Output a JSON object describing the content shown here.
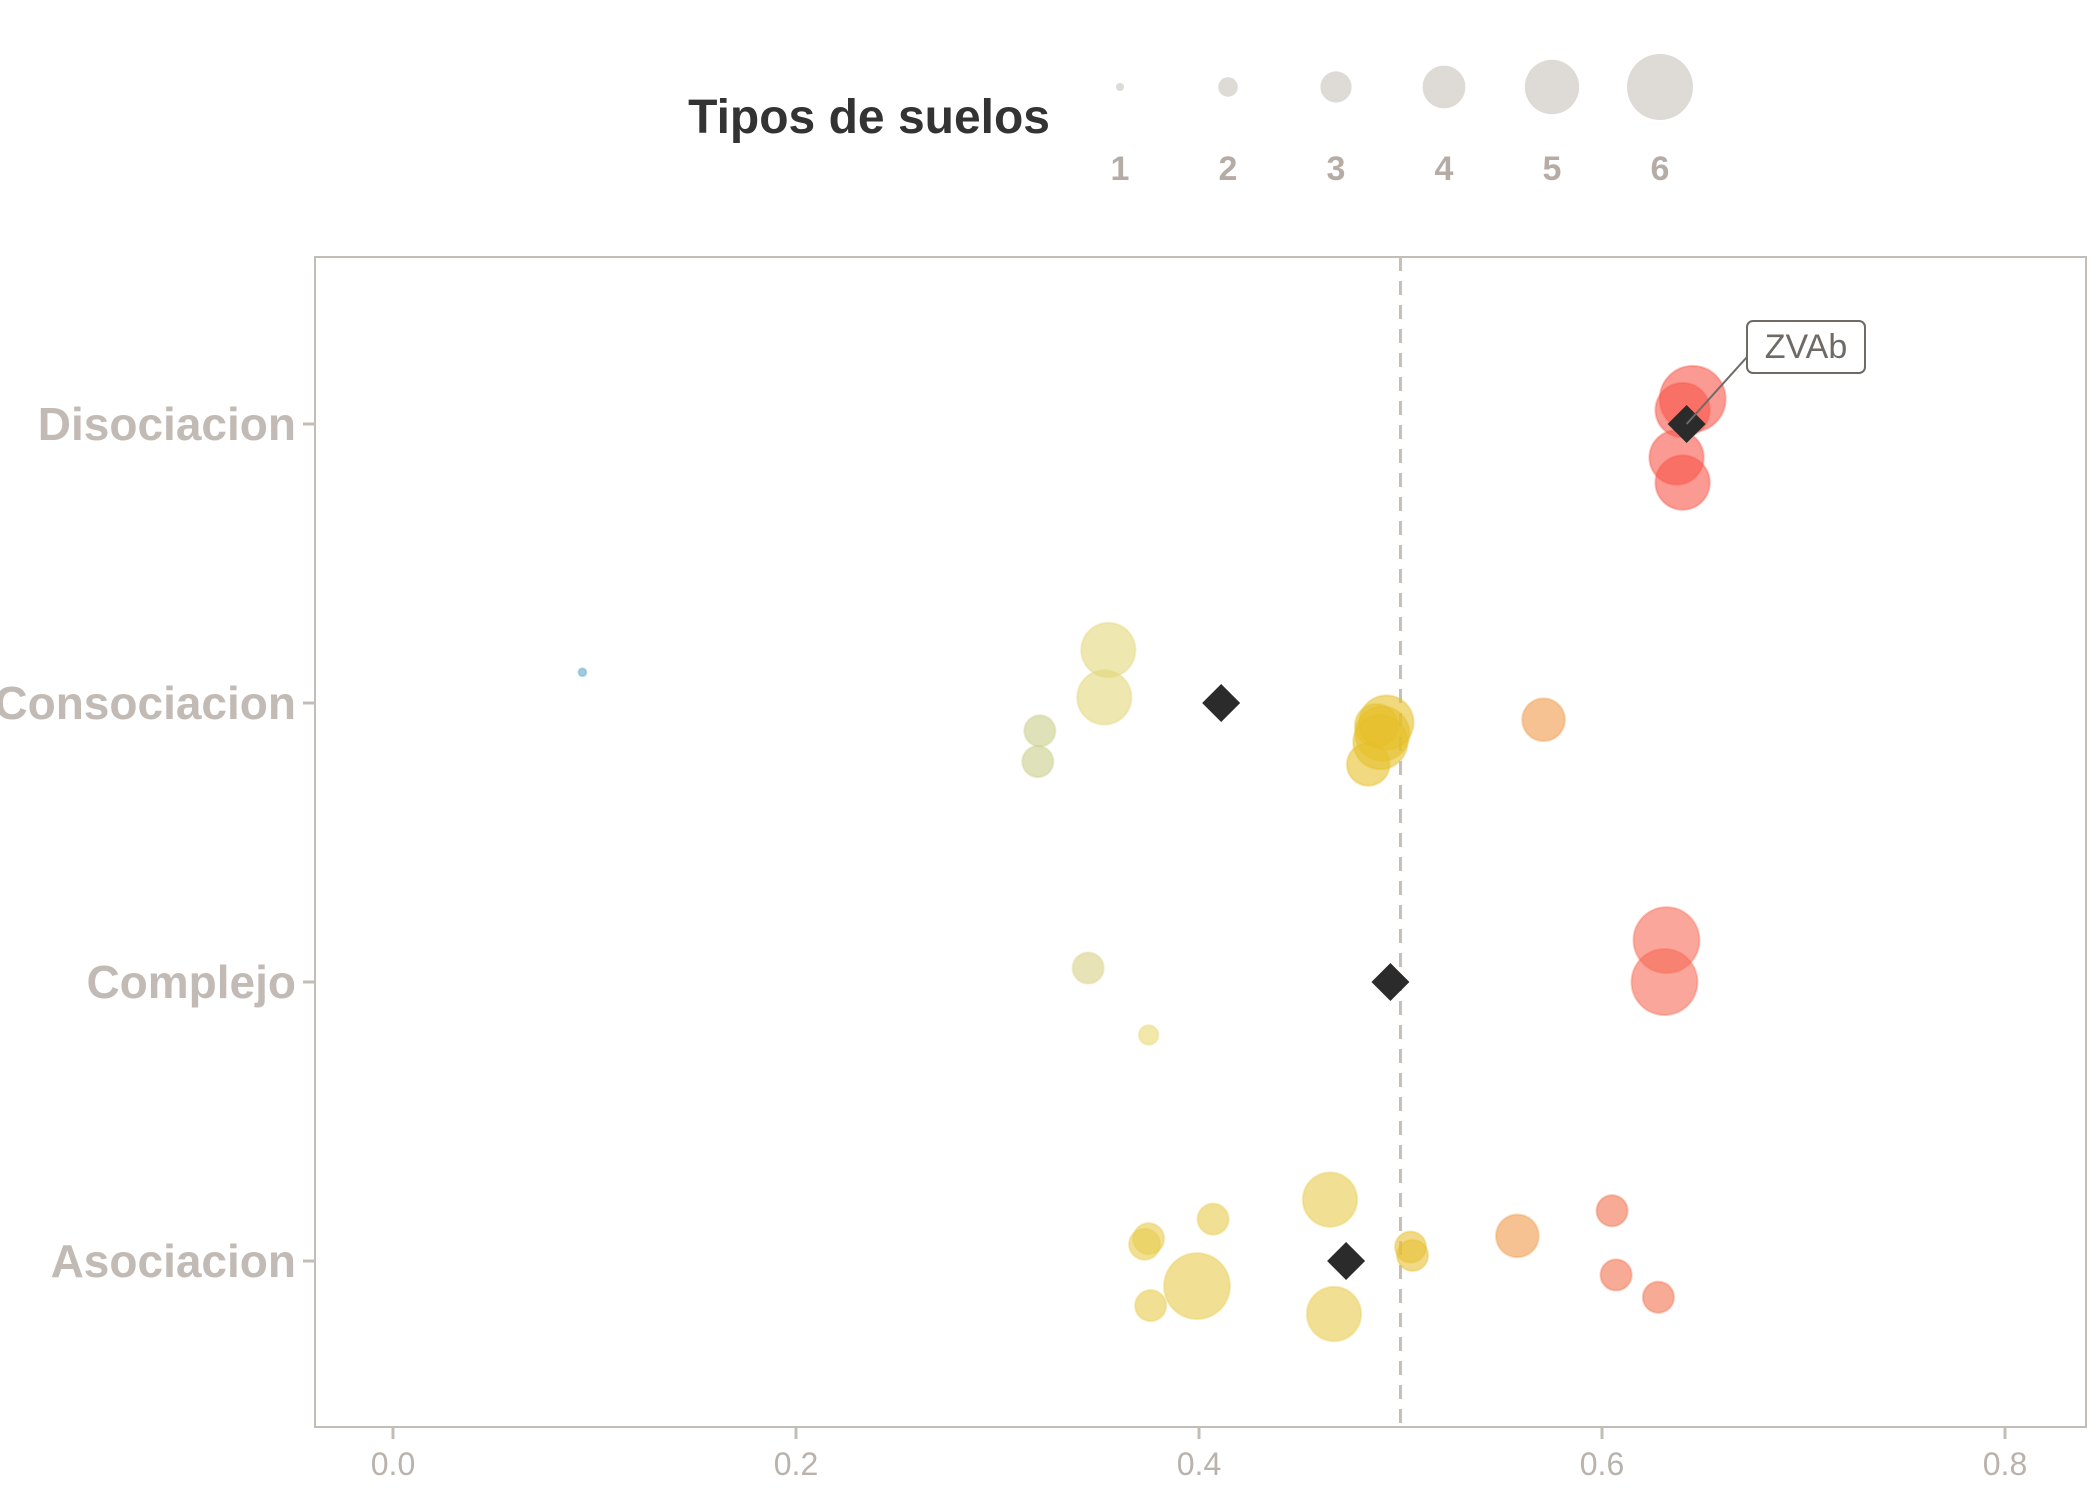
{
  "chart_data": {
    "type": "scatter",
    "legend": {
      "title": "Tipos de suelos",
      "position": "top",
      "size_values": [
        1,
        2,
        3,
        4,
        5,
        6
      ],
      "color": "#dedad6"
    },
    "x_ticks": [
      0.0,
      0.2,
      0.4,
      0.6,
      0.8
    ],
    "x_tick_labels": [
      "0.0",
      "0.2",
      "0.4",
      "0.6",
      "0.8"
    ],
    "xlim": [
      -0.04,
      0.84
    ],
    "categories": [
      "Asociacion",
      "Complejo",
      "Consociacion",
      "Disociacion"
    ],
    "reference_line": {
      "x": 0.5,
      "style": "dashed",
      "color": "#c7bfb8"
    },
    "points": [
      {
        "category": "Disociacion",
        "x": 0.645,
        "offset": 0.09,
        "size": 6,
        "color": "#f8564a"
      },
      {
        "category": "Disociacion",
        "x": 0.64,
        "offset": 0.05,
        "size": 5,
        "color": "#f8564a"
      },
      {
        "category": "Disociacion",
        "x": 0.637,
        "offset": -0.12,
        "size": 5,
        "color": "#f8564a"
      },
      {
        "category": "Disociacion",
        "x": 0.64,
        "offset": -0.21,
        "size": 5,
        "color": "#f8564a"
      },
      {
        "category": "Consociacion",
        "x": 0.094,
        "offset": 0.11,
        "size": 1,
        "color": "#5fa9cc"
      },
      {
        "category": "Consociacion",
        "x": 0.355,
        "offset": 0.19,
        "size": 5,
        "color": "#e3d77a"
      },
      {
        "category": "Consociacion",
        "x": 0.353,
        "offset": 0.02,
        "size": 5,
        "color": "#e3d77a"
      },
      {
        "category": "Consociacion",
        "x": 0.321,
        "offset": -0.1,
        "size": 3,
        "color": "#c9cf8a"
      },
      {
        "category": "Consociacion",
        "x": 0.32,
        "offset": -0.21,
        "size": 3,
        "color": "#c9cf8a"
      },
      {
        "category": "Consociacion",
        "x": 0.493,
        "offset": -0.07,
        "size": 5,
        "color": "#e6bf2a"
      },
      {
        "category": "Consociacion",
        "x": 0.488,
        "offset": -0.08,
        "size": 4,
        "color": "#e6bf2a"
      },
      {
        "category": "Consociacion",
        "x": 0.491,
        "offset": -0.11,
        "size": 5,
        "color": "#e6bf2a"
      },
      {
        "category": "Consociacion",
        "x": 0.49,
        "offset": -0.14,
        "size": 5,
        "color": "#e6bf2a"
      },
      {
        "category": "Consociacion",
        "x": 0.484,
        "offset": -0.22,
        "size": 4,
        "color": "#e6bf2a"
      },
      {
        "category": "Consociacion",
        "x": 0.571,
        "offset": -0.06,
        "size": 4,
        "color": "#f09a4a"
      },
      {
        "category": "Complejo",
        "x": 0.345,
        "offset": 0.05,
        "size": 3,
        "color": "#d8d186"
      },
      {
        "category": "Complejo",
        "x": 0.375,
        "offset": -0.19,
        "size": 2,
        "color": "#e9d870"
      },
      {
        "category": "Complejo",
        "x": 0.632,
        "offset": 0.15,
        "size": 6,
        "color": "#f66a56"
      },
      {
        "category": "Complejo",
        "x": 0.631,
        "offset": 0.0,
        "size": 6,
        "color": "#f66a56"
      },
      {
        "category": "Asociacion",
        "x": 0.465,
        "offset": 0.22,
        "size": 5,
        "color": "#e8cc4c"
      },
      {
        "category": "Asociacion",
        "x": 0.407,
        "offset": 0.15,
        "size": 3,
        "color": "#e8cc4c"
      },
      {
        "category": "Asociacion",
        "x": 0.375,
        "offset": 0.08,
        "size": 3,
        "color": "#e8cc4c"
      },
      {
        "category": "Asociacion",
        "x": 0.373,
        "offset": 0.06,
        "size": 3,
        "color": "#e8cc4c"
      },
      {
        "category": "Asociacion",
        "x": 0.399,
        "offset": -0.09,
        "size": 6,
        "color": "#e8cc4c"
      },
      {
        "category": "Asociacion",
        "x": 0.376,
        "offset": -0.16,
        "size": 3,
        "color": "#e8cc4c"
      },
      {
        "category": "Asociacion",
        "x": 0.467,
        "offset": -0.19,
        "size": 5,
        "color": "#e8cc4c"
      },
      {
        "category": "Asociacion",
        "x": 0.505,
        "offset": 0.05,
        "size": 3,
        "color": "#e8c035"
      },
      {
        "category": "Asociacion",
        "x": 0.506,
        "offset": 0.02,
        "size": 3,
        "color": "#e8c035"
      },
      {
        "category": "Asociacion",
        "x": 0.558,
        "offset": 0.09,
        "size": 4,
        "color": "#f09a4a"
      },
      {
        "category": "Asociacion",
        "x": 0.605,
        "offset": 0.18,
        "size": 3,
        "color": "#f2724f"
      },
      {
        "category": "Asociacion",
        "x": 0.607,
        "offset": -0.05,
        "size": 3,
        "color": "#f2724f"
      },
      {
        "category": "Asociacion",
        "x": 0.628,
        "offset": -0.13,
        "size": 3,
        "color": "#f2724f"
      }
    ],
    "means": [
      {
        "category": "Disociacion",
        "x": 0.642
      },
      {
        "category": "Consociacion",
        "x": 0.411
      },
      {
        "category": "Complejo",
        "x": 0.495
      },
      {
        "category": "Asociacion",
        "x": 0.473
      }
    ],
    "annotations": [
      {
        "text": "ZVAb",
        "category": "Disociacion",
        "x": 0.642
      }
    ],
    "grid": false
  }
}
